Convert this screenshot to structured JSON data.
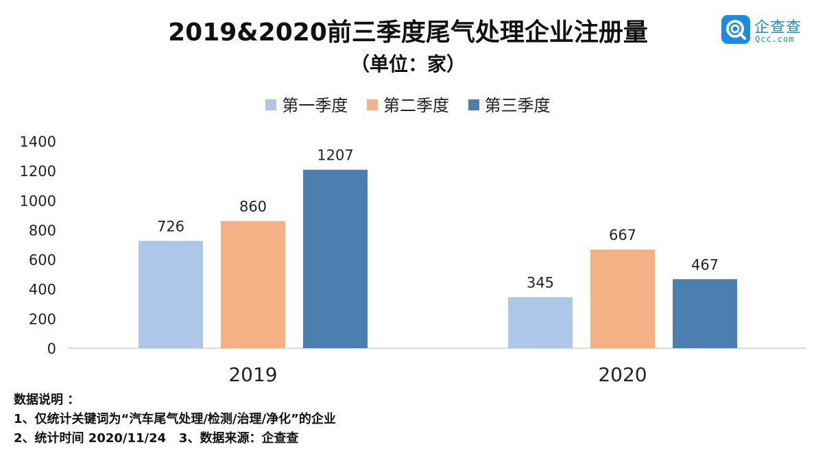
{
  "title": "2019&2020前三季度尾气处理企业注册量",
  "subtitle": "（单位：家）",
  "logo": {
    "name": "企查查",
    "sub": "Qcc.com",
    "color": "#1a8ce6",
    "icon": "qcc-logo-icon"
  },
  "chart_data": {
    "type": "bar",
    "categories": [
      "2019",
      "2020"
    ],
    "series": [
      {
        "name": "第一季度",
        "values": [
          726,
          345
        ],
        "color": "#aec7e8"
      },
      {
        "name": "第二季度",
        "values": [
          860,
          667
        ],
        "color": "#f4b183"
      },
      {
        "name": "第三季度",
        "values": [
          1207,
          467
        ],
        "color": "#4a7fb0"
      }
    ],
    "ylim": [
      0,
      1400
    ],
    "yticks": [
      0,
      200,
      400,
      600,
      800,
      1000,
      1200,
      1400
    ],
    "grid": false,
    "legend": "top-center",
    "title": "2019&2020前三季度尾气处理企业注册量",
    "xlabel": "",
    "ylabel": ""
  },
  "notes": {
    "heading": "数据说明 ：",
    "line1": "1、仅统计关键词为“汽车尾气处理/检测/治理/净化”的企业",
    "line2": "2、统计时间 2020/11/24   3、数据来源：企查查"
  }
}
